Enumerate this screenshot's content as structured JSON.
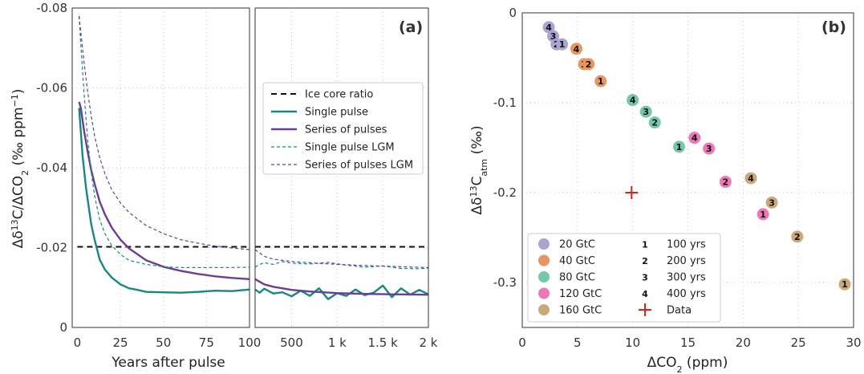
{
  "chart_data": [
    {
      "panel": "(a)",
      "type": "line",
      "ylabel": "Δδ13C/ΔCO2 (‰ ppm−1)",
      "xlabel": "Years after pulse",
      "ylim": [
        0,
        -0.08
      ],
      "y_inverted": true,
      "yticks": [
        0,
        -0.02,
        -0.04,
        -0.06,
        -0.08
      ],
      "ytick_labels": [
        "0",
        "-0.02",
        "-0.04",
        "-0.06",
        "-0.08"
      ],
      "left_segment": {
        "xlim": [
          -3,
          100
        ],
        "xticks": [
          0,
          25,
          50,
          75,
          100
        ],
        "xtick_labels": [
          "0",
          "25",
          "50",
          "75",
          "100"
        ]
      },
      "right_segment": {
        "xlim": [
          100,
          2000
        ],
        "xticks": [
          500,
          1000,
          1500,
          2000
        ],
        "xtick_labels": [
          "500",
          "1 k",
          "1.5 k",
          "2 k"
        ]
      },
      "grid": true,
      "legend_position": "center-right",
      "series": [
        {
          "name": "Ice core ratio",
          "style": "dashed",
          "color": "#111111",
          "x": [
            0,
            100,
            2000
          ],
          "y": [
            -0.0202,
            -0.0202,
            -0.0202
          ]
        },
        {
          "name": "Single pulse",
          "style": "solid",
          "color": "#138a80",
          "x": [
            1,
            3,
            5,
            8,
            10,
            13,
            16,
            20,
            25,
            30,
            35,
            40,
            50,
            60,
            70,
            80,
            90,
            100,
            150,
            200,
            300,
            400,
            500,
            600,
            700,
            800,
            900,
            1000,
            1100,
            1200,
            1300,
            1400,
            1500,
            1600,
            1700,
            1800,
            1900,
            2000
          ],
          "y": [
            -0.055,
            -0.043,
            -0.035,
            -0.026,
            -0.022,
            -0.017,
            -0.0145,
            -0.0125,
            -0.0108,
            -0.0098,
            -0.0094,
            -0.0089,
            -0.0088,
            -0.0087,
            -0.0089,
            -0.0092,
            -0.0091,
            -0.0095,
            -0.0087,
            -0.0097,
            -0.0085,
            -0.0088,
            -0.0078,
            -0.0092,
            -0.0079,
            -0.0098,
            -0.0071,
            -0.0086,
            -0.0079,
            -0.0095,
            -0.0081,
            -0.0087,
            -0.0105,
            -0.0076,
            -0.0098,
            -0.0082,
            -0.0094,
            -0.0083
          ]
        },
        {
          "name": "Series of pulses",
          "style": "solid",
          "color": "#6a3d9a",
          "x": [
            1,
            2,
            4,
            6,
            8,
            10,
            13,
            16,
            20,
            25,
            30,
            40,
            50,
            60,
            70,
            80,
            90,
            100,
            200,
            300,
            500,
            700,
            1000,
            1300,
            1600,
            2000
          ],
          "y": [
            -0.0565,
            -0.055,
            -0.049,
            -0.044,
            -0.0395,
            -0.036,
            -0.0315,
            -0.0283,
            -0.025,
            -0.022,
            -0.0198,
            -0.0168,
            -0.0152,
            -0.0142,
            -0.0134,
            -0.0128,
            -0.0124,
            -0.0121,
            -0.0108,
            -0.0102,
            -0.0094,
            -0.009,
            -0.0086,
            -0.0084,
            -0.0083,
            -0.0082
          ]
        },
        {
          "name": "Single pulse LGM",
          "style": "thin-dashed",
          "color": "#138a80",
          "x": [
            1,
            2,
            4,
            6,
            8,
            10,
            13,
            16,
            20,
            25,
            30,
            40,
            50,
            60,
            70,
            80,
            90,
            100,
            150,
            200,
            300,
            400,
            500,
            700,
            900,
            1100,
            1300,
            1500,
            1700,
            1900,
            2000
          ],
          "y": [
            -0.078,
            -0.071,
            -0.058,
            -0.047,
            -0.039,
            -0.033,
            -0.027,
            -0.0235,
            -0.0205,
            -0.0183,
            -0.0168,
            -0.0158,
            -0.0152,
            -0.015,
            -0.015,
            -0.015,
            -0.015,
            -0.0151,
            -0.0158,
            -0.0162,
            -0.0158,
            -0.0165,
            -0.0161,
            -0.0159,
            -0.0163,
            -0.0156,
            -0.0151,
            -0.0154,
            -0.0148,
            -0.0147,
            -0.0149
          ]
        },
        {
          "name": "Series of pulses LGM",
          "style": "thin-dashed",
          "color": "#6a3d9a",
          "x": [
            1,
            2,
            4,
            6,
            8,
            10,
            13,
            16,
            20,
            25,
            30,
            40,
            50,
            60,
            70,
            80,
            90,
            100,
            200,
            300,
            500,
            700,
            1000,
            1300,
            1600,
            2000
          ],
          "y": [
            -0.078,
            -0.074,
            -0.066,
            -0.059,
            -0.053,
            -0.048,
            -0.0425,
            -0.0385,
            -0.0345,
            -0.0312,
            -0.0288,
            -0.0255,
            -0.0235,
            -0.022,
            -0.0211,
            -0.0204,
            -0.0199,
            -0.0195,
            -0.0178,
            -0.0171,
            -0.0165,
            -0.0162,
            -0.0158,
            -0.0155,
            -0.0153,
            -0.015
          ]
        }
      ]
    },
    {
      "panel": "(b)",
      "type": "scatter",
      "xlabel": "ΔCO2 (ppm)",
      "ylabel": "Δδ13Catm (‰)",
      "xlim": [
        0,
        30
      ],
      "ylim": [
        0,
        -0.35
      ],
      "y_inverted": true,
      "xticks": [
        0,
        5,
        10,
        15,
        20,
        25,
        30
      ],
      "xtick_labels": [
        "0",
        "5",
        "10",
        "15",
        "20",
        "25",
        "30"
      ],
      "yticks": [
        0,
        -0.1,
        -0.2,
        -0.3
      ],
      "ytick_labels": [
        "0",
        "-0.1",
        "-0.2",
        "-0.3"
      ],
      "grid": true,
      "legend_position": "bottom-left",
      "legend_pulses": [
        {
          "label": "20 GtC",
          "color": "#a8a5d0"
        },
        {
          "label": "40 GtC",
          "color": "#e8955e"
        },
        {
          "label": "80 GtC",
          "color": "#72c8a8"
        },
        {
          "label": "120 GtC",
          "color": "#ee78b5"
        },
        {
          "label": "160 GtC",
          "color": "#c9a978"
        }
      ],
      "legend_times": [
        {
          "marker": "1",
          "label": "100 yrs"
        },
        {
          "marker": "2",
          "label": "200 yrs"
        },
        {
          "marker": "3",
          "label": "300 yrs"
        },
        {
          "marker": "4",
          "label": "400 yrs"
        },
        {
          "marker": "+",
          "label": "Data"
        }
      ],
      "points": [
        {
          "pulse": "20 GtC",
          "time": "4",
          "x": 2.4,
          "y": -0.016
        },
        {
          "pulse": "20 GtC",
          "time": "3",
          "x": 2.8,
          "y": -0.026
        },
        {
          "pulse": "20 GtC",
          "time": "2",
          "x": 3.1,
          "y": -0.035
        },
        {
          "pulse": "20 GtC",
          "time": "1",
          "x": 3.6,
          "y": -0.035
        },
        {
          "pulse": "40 GtC",
          "time": "4",
          "x": 4.9,
          "y": -0.04
        },
        {
          "pulse": "40 GtC",
          "time": "3",
          "x": 5.6,
          "y": -0.057
        },
        {
          "pulse": "40 GtC",
          "time": "2",
          "x": 6.0,
          "y": -0.057
        },
        {
          "pulse": "40 GtC",
          "time": "1",
          "x": 7.1,
          "y": -0.076
        },
        {
          "pulse": "80 GtC",
          "time": "4",
          "x": 10.0,
          "y": -0.097
        },
        {
          "pulse": "80 GtC",
          "time": "3",
          "x": 11.2,
          "y": -0.11
        },
        {
          "pulse": "80 GtC",
          "time": "2",
          "x": 12.0,
          "y": -0.122
        },
        {
          "pulse": "80 GtC",
          "time": "1",
          "x": 14.2,
          "y": -0.149
        },
        {
          "pulse": "120 GtC",
          "time": "4",
          "x": 15.6,
          "y": -0.139
        },
        {
          "pulse": "120 GtC",
          "time": "3",
          "x": 16.9,
          "y": -0.151
        },
        {
          "pulse": "120 GtC",
          "time": "2",
          "x": 18.4,
          "y": -0.188
        },
        {
          "pulse": "120 GtC",
          "time": "1",
          "x": 21.8,
          "y": -0.224
        },
        {
          "pulse": "160 GtC",
          "time": "4",
          "x": 20.7,
          "y": -0.184
        },
        {
          "pulse": "160 GtC",
          "time": "3",
          "x": 22.6,
          "y": -0.211
        },
        {
          "pulse": "160 GtC",
          "time": "2",
          "x": 24.9,
          "y": -0.249
        },
        {
          "pulse": "160 GtC",
          "time": "1",
          "x": 29.2,
          "y": -0.302
        }
      ],
      "data_point": {
        "label": "Data",
        "x": 9.9,
        "y": -0.2,
        "color": "#e0201b"
      }
    }
  ]
}
